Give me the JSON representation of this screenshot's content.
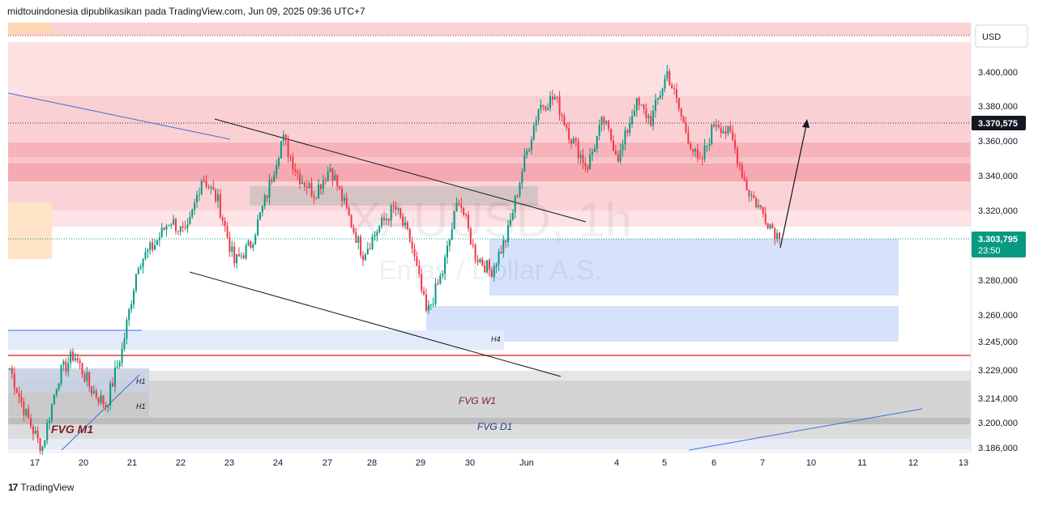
{
  "header": {
    "publish_line": "midtouindonesia dipublikasikan pada TradingView.com, Jun 09, 2025 09:36 UTC+7"
  },
  "footer": {
    "brand": "TradingView",
    "logo_glyph": "17"
  },
  "watermark": {
    "symbol": "XAUUSD, 1h",
    "name": "Emas / Dollar A.S."
  },
  "colors": {
    "up": "#089981",
    "down": "#f23645",
    "supply_zone": "#f7a8ae",
    "demand_zone": "#b9cdf7",
    "fvg_gray": "#c8c8c8",
    "support_line": "#e03c3c",
    "trend_blue": "#3b6ee0",
    "price_badge": "#089981"
  },
  "chart_data": {
    "type": "candlestick",
    "symbol": "XAUUSD",
    "timeframe": "1h",
    "currency": "USD",
    "y_range": [
      3180,
      3418
    ],
    "x_tick_labels": [
      "17",
      "20",
      "21",
      "22",
      "23",
      "24",
      "27",
      "28",
      "29",
      "30",
      "Jun",
      "4",
      "5",
      "6",
      "7",
      "10",
      "11",
      "12",
      "13"
    ],
    "y_tick_labels": [
      "3.400,000",
      "3.380,000",
      "3.360,000",
      "3.340,000",
      "3.320,000",
      "3.280,000",
      "3.260,000",
      "3.245,000",
      "3.229,000",
      "3.214,000",
      "3.200,000",
      "3.186,000"
    ],
    "y_tick_values": [
      3400,
      3380,
      3360,
      3340,
      3320,
      3280,
      3260,
      3245,
      3229,
      3214,
      3200,
      3186
    ],
    "current_price_label": "3.303,795",
    "countdown_label": "23:50",
    "marked_level_label": "3.370,575",
    "marked_level_value": 3370.575,
    "current_price_value": 3303.795,
    "zone_labels": {
      "fvg_m1": "FVG M1",
      "fvg_w1": "FVG W1",
      "fvg_d1": "FVG D1",
      "h1_a": "H1",
      "h1_b": "H1",
      "h4": "H4"
    },
    "close_path": [
      {
        "d": "17",
        "close": 3230
      },
      {
        "d": "17",
        "close": 3205
      },
      {
        "d": "17",
        "close": 3185
      },
      {
        "d": "17",
        "close": 3225
      },
      {
        "d": "20",
        "close": 3238
      },
      {
        "d": "20",
        "close": 3220
      },
      {
        "d": "20",
        "close": 3210
      },
      {
        "d": "21",
        "close": 3240
      },
      {
        "d": "21",
        "close": 3290
      },
      {
        "d": "21",
        "close": 3300
      },
      {
        "d": "22",
        "close": 3315
      },
      {
        "d": "22",
        "close": 3305
      },
      {
        "d": "22",
        "close": 3340
      },
      {
        "d": "22",
        "close": 3325
      },
      {
        "d": "23",
        "close": 3290
      },
      {
        "d": "23",
        "close": 3300
      },
      {
        "d": "23",
        "close": 3328
      },
      {
        "d": "24",
        "close": 3362
      },
      {
        "d": "24",
        "close": 3340
      },
      {
        "d": "24",
        "close": 3330
      },
      {
        "d": "27",
        "close": 3345
      },
      {
        "d": "27",
        "close": 3320
      },
      {
        "d": "28",
        "close": 3295
      },
      {
        "d": "28",
        "close": 3310
      },
      {
        "d": "28",
        "close": 3322
      },
      {
        "d": "29",
        "close": 3302
      },
      {
        "d": "29",
        "close": 3260
      },
      {
        "d": "29",
        "close": 3285
      },
      {
        "d": "30",
        "close": 3328
      },
      {
        "d": "30",
        "close": 3295
      },
      {
        "d": "30",
        "close": 3285
      },
      {
        "d": "Jun",
        "close": 3305
      },
      {
        "d": "Jun",
        "close": 3345
      },
      {
        "d": "Jun",
        "close": 3380
      },
      {
        "d": "2",
        "close": 3385
      },
      {
        "d": "2",
        "close": 3362
      },
      {
        "d": "3",
        "close": 3345
      },
      {
        "d": "3",
        "close": 3372
      },
      {
        "d": "4",
        "close": 3350
      },
      {
        "d": "5",
        "close": 3382
      },
      {
        "d": "5",
        "close": 3372
      },
      {
        "d": "5",
        "close": 3400
      },
      {
        "d": "6",
        "close": 3370
      },
      {
        "d": "6",
        "close": 3345
      },
      {
        "d": "6",
        "close": 3372
      },
      {
        "d": "7",
        "close": 3362
      },
      {
        "d": "7",
        "close": 3332
      },
      {
        "d": "7",
        "close": 3318
      },
      {
        "d": "9",
        "close": 3304
      }
    ]
  }
}
